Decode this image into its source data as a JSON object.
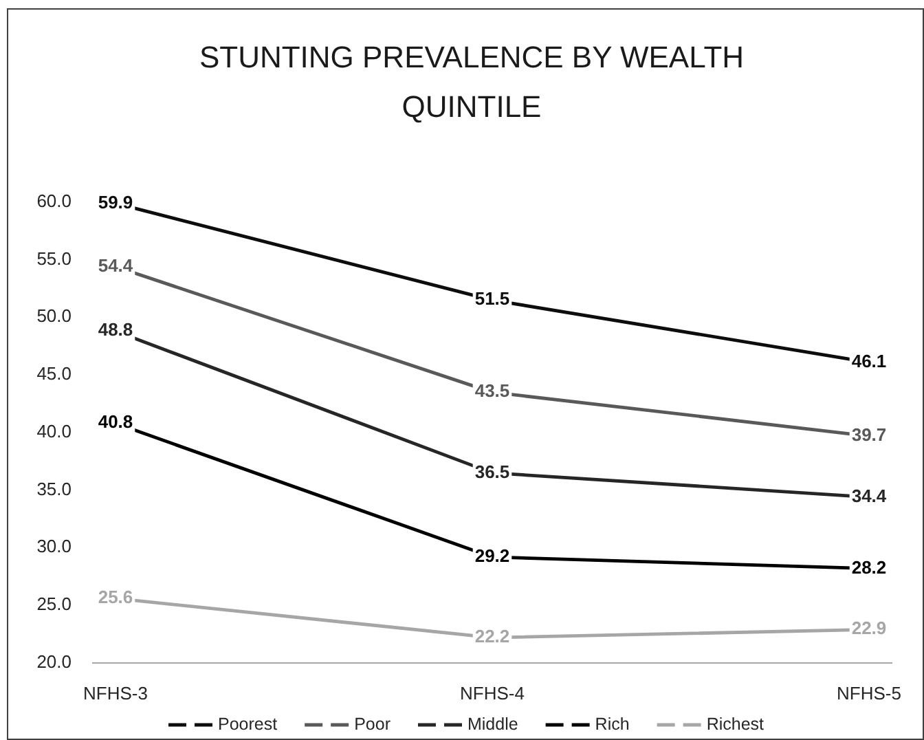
{
  "chart_data": {
    "type": "line",
    "title": "STUNTING PREVALENCE BY WEALTH QUINTILE",
    "categories": [
      "NFHS-3",
      "NFHS-4",
      "NFHS-5"
    ],
    "series": [
      {
        "name": "Poorest",
        "color": "#0d0d0d",
        "values": [
          59.9,
          51.5,
          46.1
        ]
      },
      {
        "name": "Poor",
        "color": "#595959",
        "values": [
          54.4,
          43.5,
          39.7
        ]
      },
      {
        "name": "Middle",
        "color": "#262626",
        "values": [
          48.8,
          36.5,
          34.4
        ]
      },
      {
        "name": "Rich",
        "color": "#000000",
        "values": [
          40.8,
          29.2,
          28.2
        ]
      },
      {
        "name": "Richest",
        "color": "#a6a6a6",
        "values": [
          25.6,
          22.2,
          22.9
        ]
      }
    ],
    "ylim": [
      20,
      60
    ],
    "yticks": [
      {
        "value": 20,
        "label": "20.0"
      },
      {
        "value": 25,
        "label": "25.0"
      },
      {
        "value": 30,
        "label": "30.0"
      },
      {
        "value": 35,
        "label": "35.0"
      },
      {
        "value": 40,
        "label": "40.0"
      },
      {
        "value": 45,
        "label": "45.0"
      },
      {
        "value": 50,
        "label": "50.0"
      },
      {
        "value": 55,
        "label": "55.0"
      },
      {
        "value": 60,
        "label": "60.0"
      }
    ],
    "data_labels": true,
    "legend": "bottom"
  }
}
